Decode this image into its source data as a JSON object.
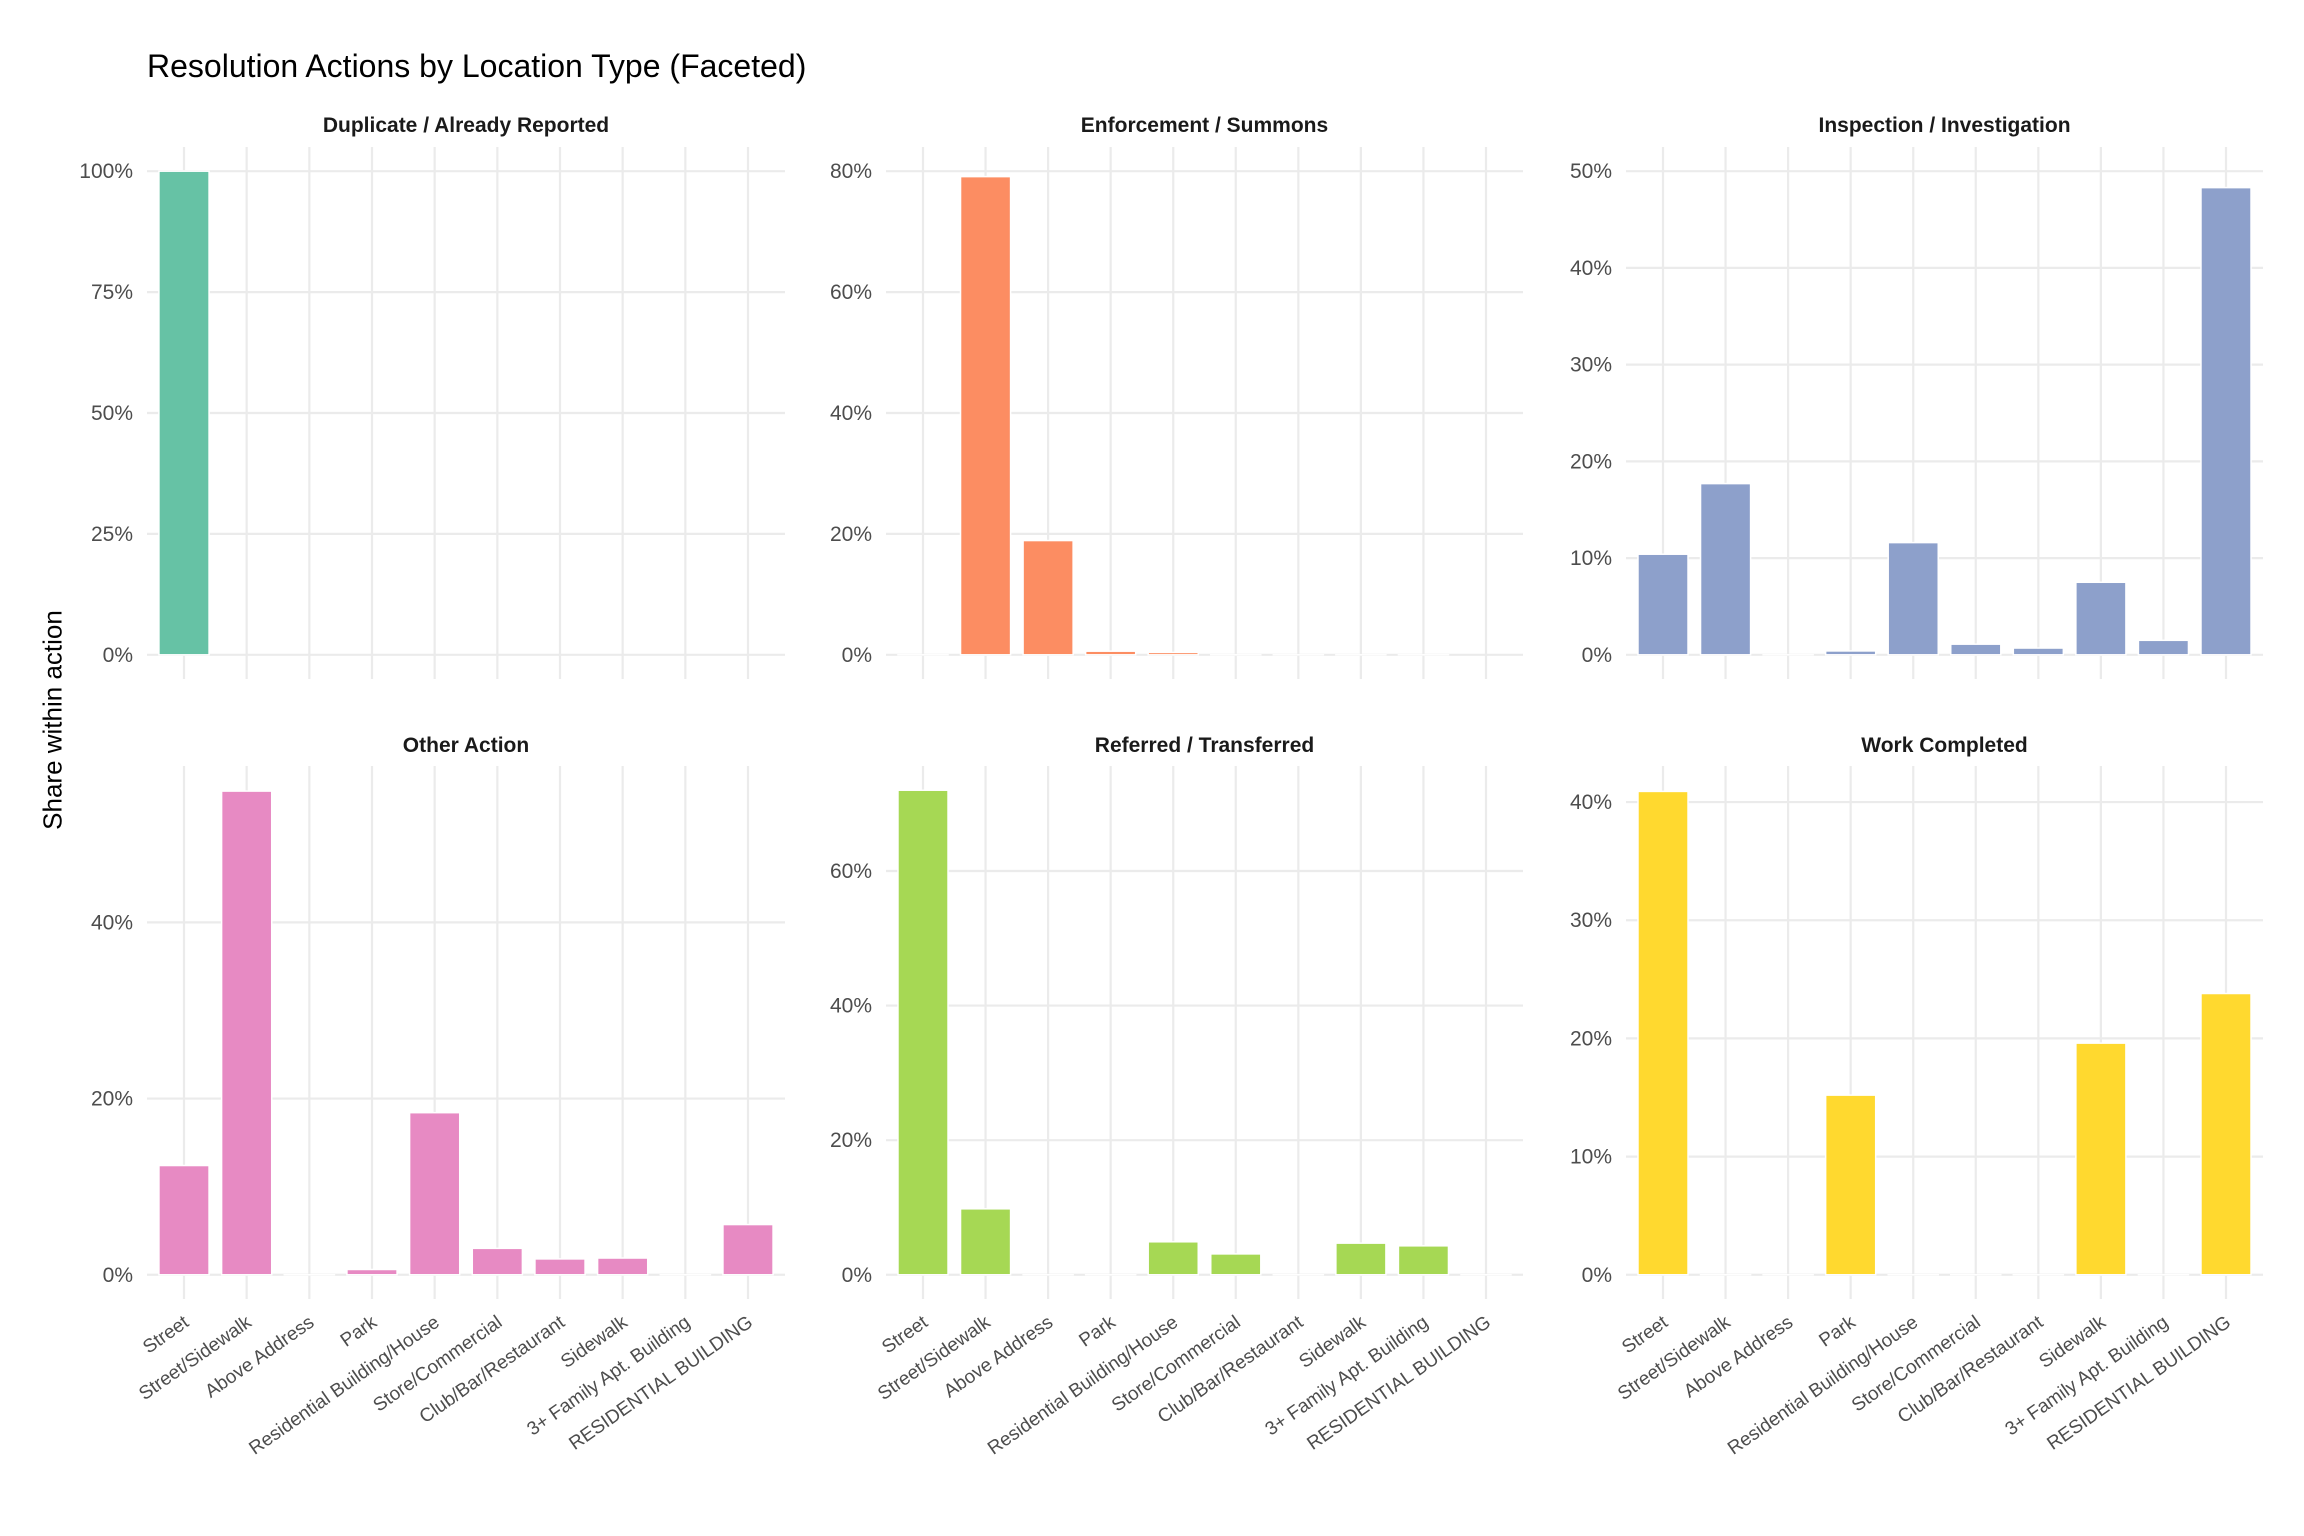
{
  "chart_data": {
    "type": "bar",
    "title": "Resolution Actions by Location Type (Faceted)",
    "xlabel": "",
    "ylabel": "Share within action",
    "grid": true,
    "legend": "none",
    "y_format": "percent",
    "categories": [
      "Street",
      "Street/Sidewalk",
      "Above Address",
      "Park",
      "Residential Building/House",
      "Store/Commercial",
      "Club/Bar/Restaurant",
      "Sidewalk",
      "3+ Family Apt. Building",
      "RESIDENTIAL BUILDING"
    ],
    "facets": [
      {
        "name": "Duplicate / Already Reported",
        "color": "#66C2A5",
        "yticks": [
          0,
          25,
          50,
          75,
          100
        ],
        "ylim": [
          0,
          100
        ],
        "values": [
          100,
          null,
          null,
          null,
          null,
          null,
          null,
          null,
          null,
          null
        ]
      },
      {
        "name": "Enforcement / Summons",
        "color": "#FC8D62",
        "yticks": [
          0,
          20,
          40,
          60,
          80
        ],
        "ylim": [
          0,
          80
        ],
        "values": [
          0,
          79.1,
          18.9,
          0.6,
          0.4,
          0,
          0,
          0,
          0,
          null
        ]
      },
      {
        "name": "Inspection / Investigation",
        "color": "#8DA0CB",
        "yticks": [
          0,
          10,
          20,
          30,
          40,
          50
        ],
        "ylim": [
          0,
          50
        ],
        "values": [
          10.4,
          17.7,
          0,
          0.4,
          11.6,
          1.1,
          0.7,
          7.5,
          1.5,
          48.3
        ]
      },
      {
        "name": "Other Action",
        "color": "#E78AC3",
        "yticks": [
          0,
          20,
          40
        ],
        "ylim": [
          0,
          55
        ],
        "values": [
          12.4,
          54.9,
          0,
          0.6,
          18.4,
          3.0,
          1.8,
          1.9,
          0,
          5.7
        ]
      },
      {
        "name": "Referred / Transferred",
        "color": "#A6D854",
        "yticks": [
          0,
          20,
          40,
          60
        ],
        "ylim": [
          0,
          72
        ],
        "values": [
          72.0,
          9.8,
          0,
          0,
          4.9,
          3.1,
          0,
          4.7,
          4.3,
          0
        ]
      },
      {
        "name": "Work Completed",
        "color": "#FFD92F",
        "yticks": [
          0,
          10,
          20,
          30,
          40
        ],
        "ylim": [
          0,
          41
        ],
        "values": [
          40.9,
          0,
          0,
          15.2,
          0,
          0,
          0,
          19.6,
          0,
          23.8
        ]
      }
    ]
  }
}
